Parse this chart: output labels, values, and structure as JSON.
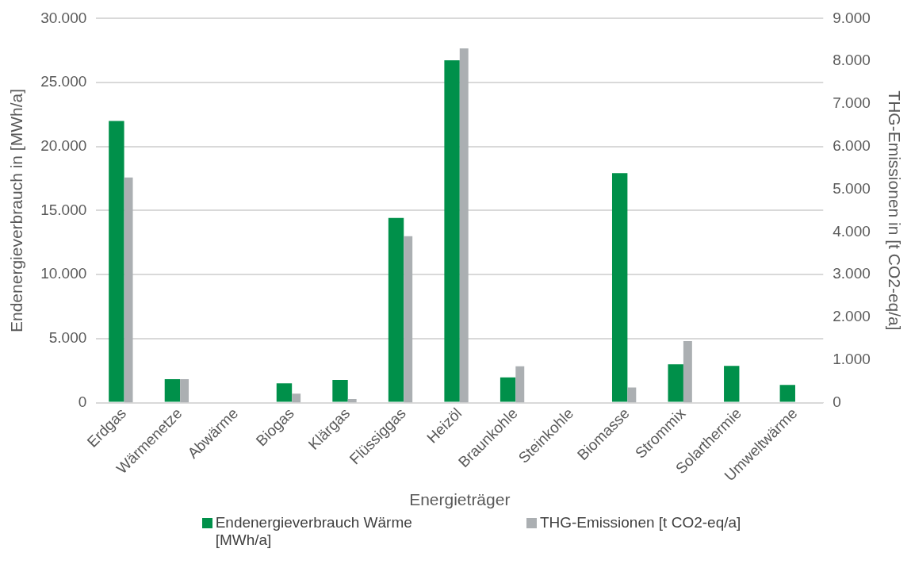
{
  "chart_data": {
    "type": "bar",
    "xlabel": "Energieträger",
    "ylabel": "Endenergieverbrauch in [MWh/a]",
    "y2label": "THG-Emissionen in [t CO2-eq/a]",
    "categories": [
      "Erdgas",
      "Wärmenetze",
      "Abwärme",
      "Biogas",
      "Klärgas",
      "Flüssiggas",
      "Heizöl",
      "Braunkohle",
      "Steinkohle",
      "Biomasse",
      "Strommix",
      "Solarthermie",
      "Umweltwärme"
    ],
    "series": [
      {
        "name": "Endenergieverbrauch Wärme [MWh/a]",
        "color": "#00904a",
        "values": [
          22000,
          1840,
          0,
          1510,
          1770,
          14430,
          26740,
          1970,
          0,
          17930,
          2995,
          2865,
          1380
        ]
      },
      {
        "name": "THG-Emissionen [t CO2-eq/a]",
        "color": "#abafb2",
        "axis": "y2",
        "values": [
          5275,
          550,
          0,
          210,
          85,
          3900,
          8300,
          850,
          0,
          355,
          1440,
          0,
          0
        ]
      }
    ],
    "ylim": [
      0,
      30000
    ],
    "yticks": [
      {
        "value": 0,
        "label": "0"
      },
      {
        "value": 5000,
        "label": "5.000"
      },
      {
        "value": 10000,
        "label": "10.000"
      },
      {
        "value": 15000,
        "label": "15.000"
      },
      {
        "value": 20000,
        "label": "20.000"
      },
      {
        "value": 25000,
        "label": "25.000"
      },
      {
        "value": 30000,
        "label": "30.000"
      }
    ],
    "y2lim": [
      0,
      9000
    ],
    "y2ticks": [
      {
        "value": 0,
        "label": "0"
      },
      {
        "value": 1000,
        "label": "1.000"
      },
      {
        "value": 2000,
        "label": "2.000"
      },
      {
        "value": 3000,
        "label": "3.000"
      },
      {
        "value": 4000,
        "label": "4.000"
      },
      {
        "value": 5000,
        "label": "5.000"
      },
      {
        "value": 6000,
        "label": "6.000"
      },
      {
        "value": 7000,
        "label": "7.000"
      },
      {
        "value": 8000,
        "label": "8.000"
      },
      {
        "value": 9000,
        "label": "9.000"
      }
    ],
    "grid": "y",
    "legend": "bottom"
  }
}
